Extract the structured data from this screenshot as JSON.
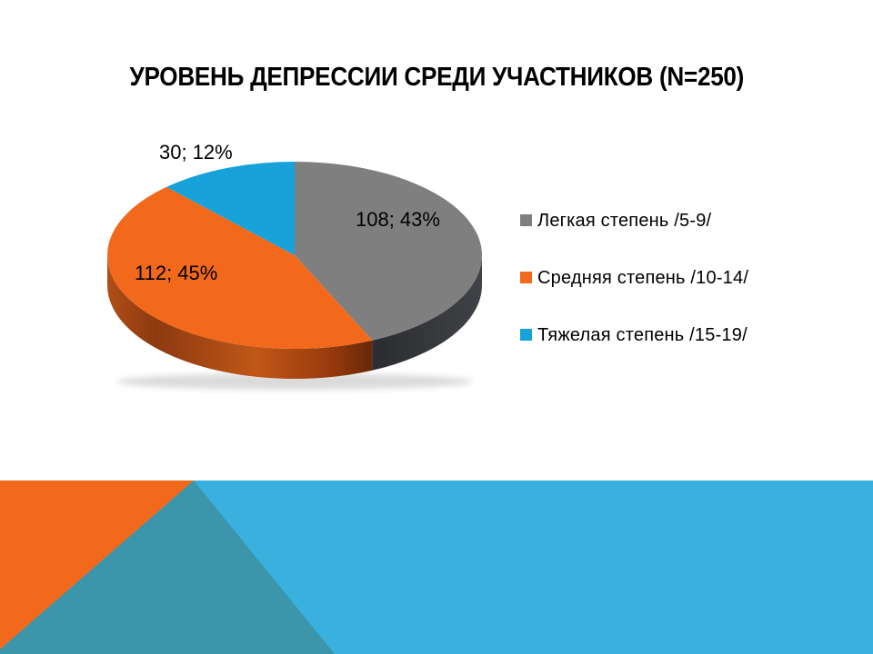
{
  "slide": {
    "title": "УРОВЕНЬ ДЕПРЕССИИ СРЕДИ УЧАСТНИКОВ (N=250)"
  },
  "chart_data": {
    "type": "pie",
    "title": "УРОВЕНЬ ДЕПРЕССИИ СРЕДИ УЧАСТНИКОВ (N=250)",
    "total": 250,
    "style": "3d",
    "start_angle_deg": 0,
    "direction": "clockwise",
    "legend_position": "right",
    "slices": [
      {
        "label": "Легкая степень /5-9/",
        "value": 108,
        "percent": 43,
        "data_label": "108; 43%",
        "color": "#7F7F7F"
      },
      {
        "label": "Средняя степень /10-14/",
        "value": 112,
        "percent": 45,
        "data_label": "112; 45%",
        "color": "#F2691C"
      },
      {
        "label": "Тяжелая степень /15-19/",
        "value": 30,
        "percent": 12,
        "data_label": "30; 12%",
        "color": "#17A2DA"
      }
    ]
  },
  "footer": {
    "colors": {
      "background_blue": "#3AB0DE",
      "triangle_orange": "#F2691C",
      "triangle_teal": "#3C96AB"
    }
  }
}
